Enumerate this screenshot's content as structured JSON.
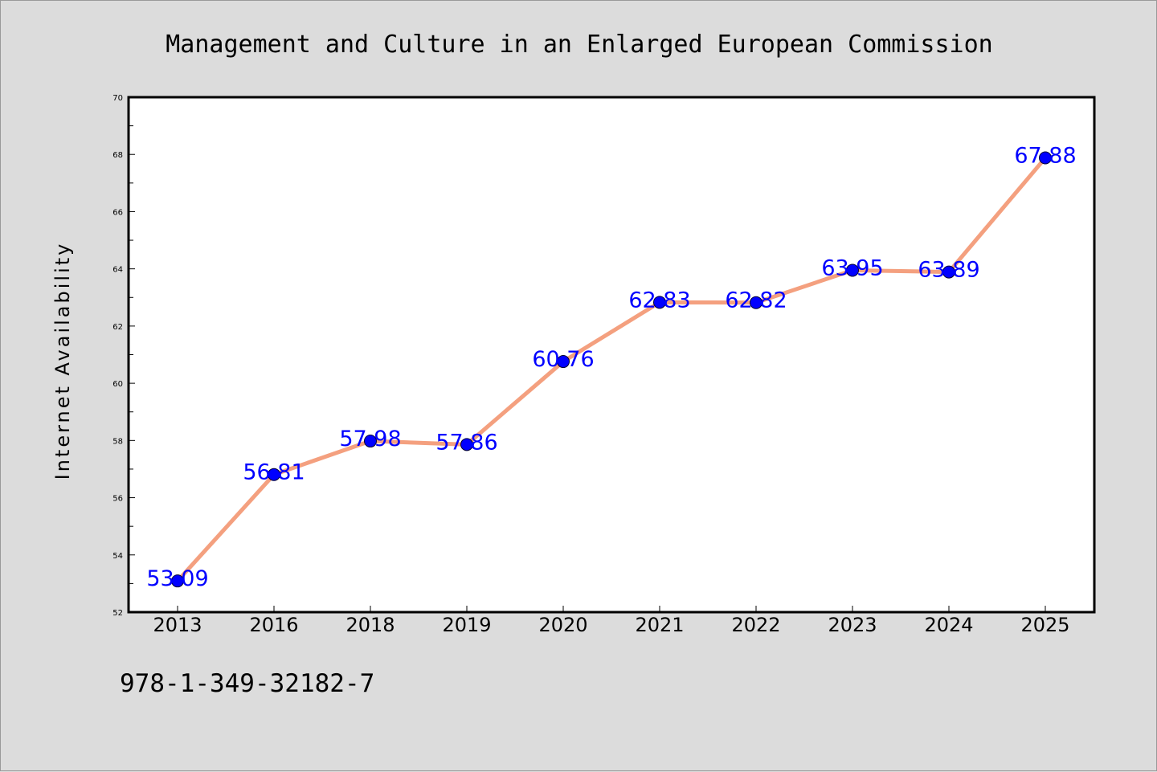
{
  "chart_data": {
    "type": "line",
    "title": "Management and Culture in an Enlarged European Commission",
    "xlabel": "",
    "ylabel": "Internet Availability",
    "categories": [
      "2013",
      "2016",
      "2018",
      "2019",
      "2020",
      "2021",
      "2022",
      "2023",
      "2024",
      "2025"
    ],
    "series": [
      {
        "values": [
          53.09,
          56.81,
          57.98,
          57.86,
          60.76,
          62.83,
          62.82,
          63.95,
          63.89,
          67.88
        ],
        "labels": [
          "53.09",
          "56.81",
          "57.98",
          "57.86",
          "60.76",
          "62.83",
          "62.82",
          "63.95",
          "63.89",
          "67.88"
        ]
      }
    ],
    "ylim": [
      52,
      70
    ],
    "yticks": [
      "52",
      "54",
      "56",
      "58",
      "60",
      "62",
      "64",
      "66",
      "68",
      "70"
    ],
    "grid": false,
    "line_color": "#f4a07f",
    "marker_color": "#0000ff",
    "label_color": "#0000ff"
  },
  "footer": {
    "isbn": "978-1-349-32182-7"
  }
}
